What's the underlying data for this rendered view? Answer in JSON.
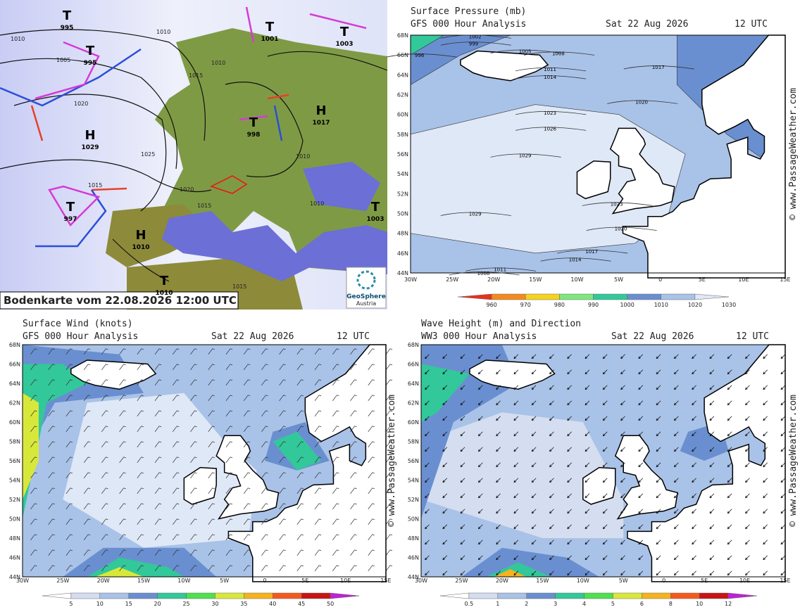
{
  "bodenkarte": {
    "caption": "Bodenkarte vom 22.08.2026 12:00 UTC",
    "logo": [
      "GeoSphere",
      "Austria"
    ],
    "centers": [
      {
        "label": "T",
        "pressure": "995"
      },
      {
        "label": "T",
        "pressure": "995"
      },
      {
        "label": "T",
        "pressure": "1001"
      },
      {
        "label": "T",
        "pressure": "1003"
      },
      {
        "label": "H",
        "pressure": "1029"
      },
      {
        "label": "T",
        "pressure": "998"
      },
      {
        "label": "H",
        "pressure": "1017"
      },
      {
        "label": "T",
        "pressure": "997"
      },
      {
        "label": "H",
        "pressure": "1010"
      },
      {
        "label": "T",
        "pressure": "1010"
      },
      {
        "label": "T",
        "pressure": "1003"
      }
    ],
    "isobars": [
      "1010",
      "1005",
      "1010",
      "1020",
      "1015",
      "1010",
      "1025",
      "1020",
      "1015",
      "1015",
      "1010",
      "1010",
      "1015"
    ]
  },
  "panels": [
    {
      "title": "Surface Pressure (mb)",
      "subtitle": "GFS 000 Hour Analysis",
      "date": "Sat 22 Aug 2026",
      "time": "12 UTC",
      "watermark": "© www.PassageWeather.com",
      "lat": [
        "68N",
        "66N",
        "64N",
        "62N",
        "60N",
        "58N",
        "56N",
        "54N",
        "52N",
        "50N",
        "48N",
        "46N",
        "44N"
      ],
      "lon": [
        "30W",
        "25W",
        "20W",
        "15W",
        "10W",
        "5W",
        "0",
        "5E",
        "10E",
        "15E"
      ],
      "colorbar": [
        "960",
        "970",
        "980",
        "990",
        "1000",
        "1010",
        "1020",
        "1030"
      ],
      "isobars": [
        "1002",
        "999",
        "996",
        "1005",
        "1008",
        "1011",
        "1014",
        "1017",
        "1020",
        "1023",
        "1026",
        "1029",
        "1029",
        "1023",
        "1020",
        "1017",
        "1014",
        "1011",
        "1008"
      ]
    },
    {
      "title": "Surface Wind (knots)",
      "subtitle": "GFS 000 Hour Analysis",
      "date": "Sat 22 Aug 2026",
      "time": "12 UTC",
      "watermark": "© www.PassageWeather.com",
      "lat": [
        "68N",
        "66N",
        "64N",
        "62N",
        "60N",
        "58N",
        "56N",
        "54N",
        "52N",
        "50N",
        "48N",
        "46N",
        "44N"
      ],
      "lon": [
        "30W",
        "25W",
        "20W",
        "15W",
        "10W",
        "5W",
        "0",
        "5E",
        "10E",
        "15E"
      ],
      "colorbar": [
        "5",
        "10",
        "15",
        "20",
        "25",
        "30",
        "35",
        "40",
        "45",
        "50"
      ]
    },
    {
      "title": "Wave Height (m) and Direction",
      "subtitle": "WW3 000 Hour Analysis",
      "date": "Sat 22 Aug 2026",
      "time": "12 UTC",
      "watermark": "© www.PassageWeather.com",
      "lat": [
        "68N",
        "66N",
        "64N",
        "62N",
        "60N",
        "58N",
        "56N",
        "54N",
        "52N",
        "50N",
        "48N",
        "46N",
        "44N"
      ],
      "lon": [
        "30W",
        "25W",
        "20W",
        "15W",
        "10W",
        "5W",
        "0",
        "5E",
        "10E",
        "15E"
      ],
      "colorbar": [
        "0.5",
        "1",
        "2",
        "3",
        "4",
        "5",
        "6",
        "8",
        "10",
        "12"
      ]
    }
  ]
}
